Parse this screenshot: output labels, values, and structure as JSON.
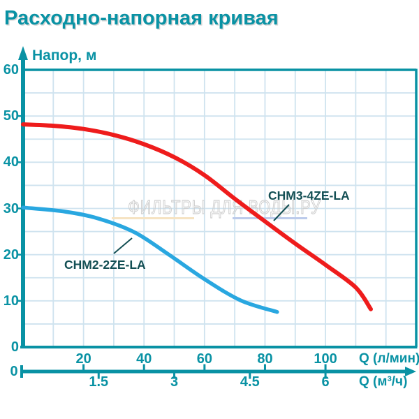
{
  "title": "Расходно-напорная кривая",
  "watermark": {
    "text": "ФИЛЬТРЫ ДЛЯ ВОДЫ.РУ"
  },
  "chart_data": {
    "type": "line",
    "title": "Расходно-напорная кривая",
    "ylabel": "Напор, м",
    "xlabel_primary": "Q (л/мин)",
    "xlabel_secondary": "Q (м³/ч)",
    "x_range_lmin": [
      0,
      130
    ],
    "y_range_m": [
      0,
      60
    ],
    "grid": true,
    "x_grid_step_lmin": 10,
    "y_grid_step_m": 5,
    "y_ticks": [
      0,
      10,
      20,
      30,
      40,
      50,
      60
    ],
    "x_zero_label": "0",
    "x_ticks_lmin": [
      20,
      40,
      60,
      80,
      100
    ],
    "x_ticks_m3h": [
      1.5,
      3,
      4.5,
      6
    ],
    "m3h_to_lmin": 16.6667,
    "series": [
      {
        "name": "CHM3-4ZE-LA",
        "color": "#ee1c1c",
        "points_q_lmin_head_m": [
          [
            0,
            48.2
          ],
          [
            10,
            47.9
          ],
          [
            20,
            47.2
          ],
          [
            30,
            45.9
          ],
          [
            40,
            43.9
          ],
          [
            50,
            41.1
          ],
          [
            60,
            37.2
          ],
          [
            70,
            32.1
          ],
          [
            80,
            27.2
          ],
          [
            90,
            22.4
          ],
          [
            100,
            17.8
          ],
          [
            110,
            12.9
          ],
          [
            115,
            8.2
          ]
        ]
      },
      {
        "name": "CHM2-2ZE-LA",
        "color": "#29a7e0",
        "points_q_lmin_head_m": [
          [
            0,
            30.2
          ],
          [
            14,
            29.3
          ],
          [
            25,
            27.8
          ],
          [
            37,
            24.8
          ],
          [
            48,
            20.1
          ],
          [
            60,
            14.7
          ],
          [
            72,
            10.1
          ],
          [
            84,
            7.6
          ]
        ]
      }
    ],
    "colors": {
      "axis_teal": "#0992a4",
      "grid": "#cfe3ef",
      "series_label_teal": "#134f54",
      "watermark_gray": "#cfcfcf",
      "watermark_underline_orange": "#f6e3c2",
      "watermark_underline_blue": "#bccbeb"
    }
  }
}
